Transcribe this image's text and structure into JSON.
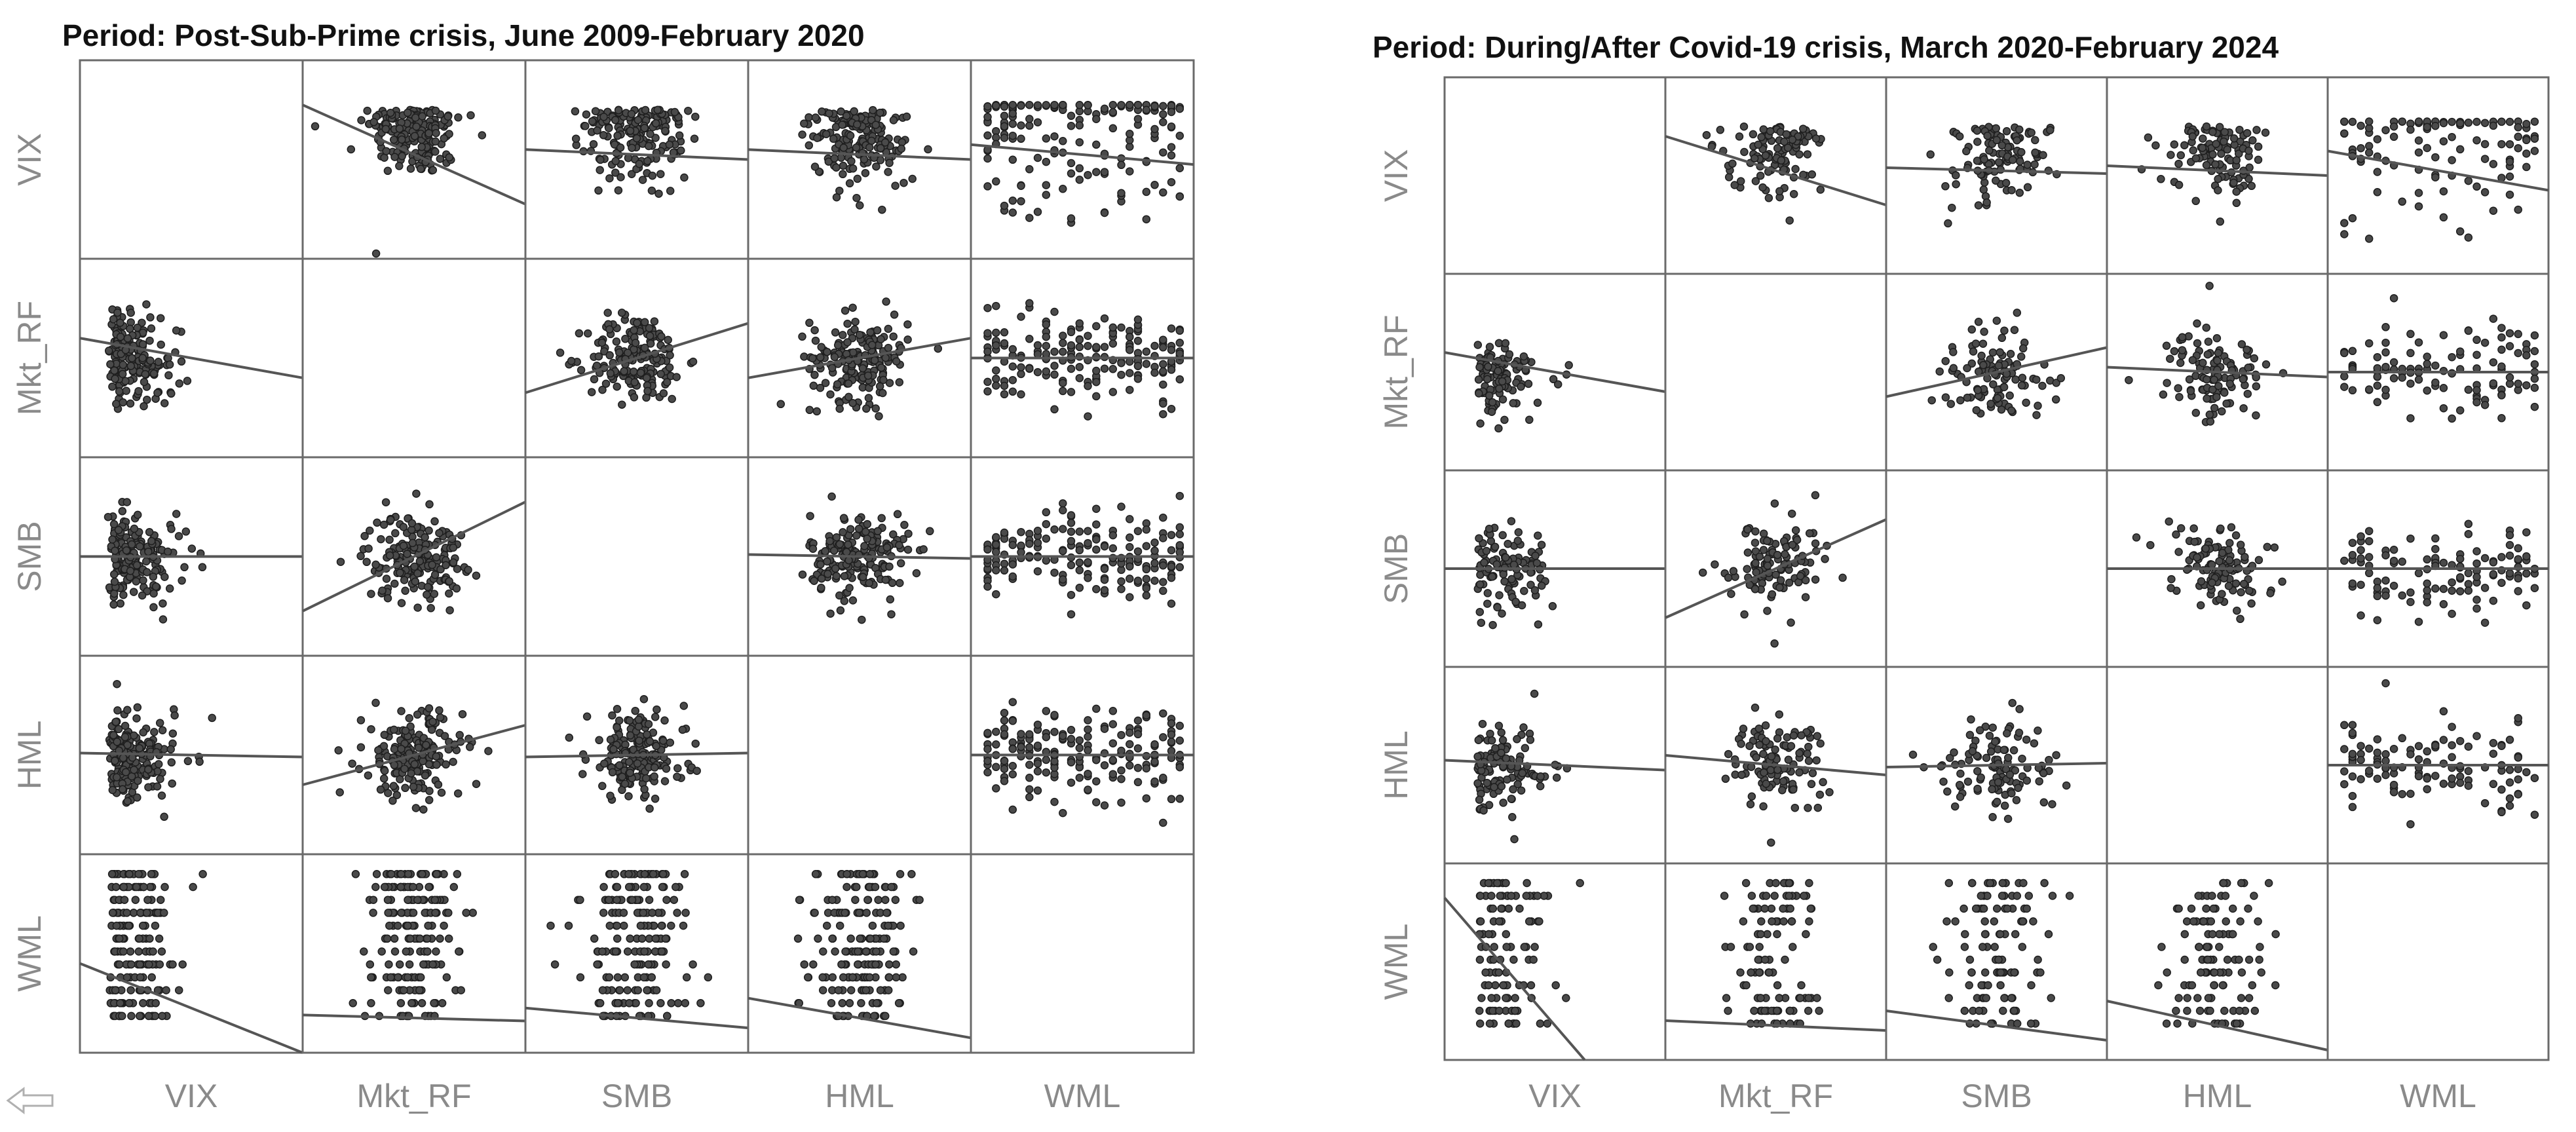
{
  "figure": {
    "variables": [
      "VIX",
      "Mkt_RF",
      "SMB",
      "HML",
      "WML"
    ]
  },
  "chart_data": [
    {
      "type": "scatter",
      "subtype": "scatterplot-matrix",
      "title": "Period: Post-Sub-Prime crisis, June 2009-February 2020",
      "variables": [
        "VIX",
        "Mkt_RF",
        "SMB",
        "HML",
        "WML"
      ],
      "row_labels": [
        "VIX",
        "Mkt_RF",
        "SMB",
        "HML",
        "WML"
      ],
      "col_labels": [
        "VIX",
        "Mkt_RF",
        "SMB",
        "HML",
        "WML"
      ],
      "diagonal": "empty",
      "grid": false,
      "regression_slopes": {
        "VIX": {
          "Mkt_RF": -0.5,
          "SMB": -0.05,
          "HML": -0.05,
          "WML": -0.1
        },
        "Mkt_RF": {
          "VIX": -0.2,
          "SMB": 0.35,
          "HML": 0.2,
          "WML": 0.0
        },
        "SMB": {
          "VIX": 0.0,
          "Mkt_RF": 0.55,
          "HML": -0.02,
          "WML": 0.0
        },
        "HML": {
          "VIX": -0.02,
          "Mkt_RF": 0.3,
          "SMB": 0.02,
          "WML": 0.0
        },
        "WML": {
          "VIX": -0.55,
          "Mkt_RF": -0.03,
          "SMB": -0.1,
          "HML": -0.2
        }
      }
    },
    {
      "type": "scatter",
      "subtype": "scatterplot-matrix",
      "title": "Period: During/After Covid-19 crisis, March 2020-February 2024",
      "variables": [
        "VIX",
        "Mkt_RF",
        "SMB",
        "HML",
        "WML"
      ],
      "row_labels": [
        "VIX",
        "Mkt_RF",
        "SMB",
        "HML",
        "WML"
      ],
      "col_labels": [
        "VIX",
        "Mkt_RF",
        "SMB",
        "HML",
        "WML"
      ],
      "diagonal": "empty",
      "grid": false,
      "regression_slopes": {
        "VIX": {
          "Mkt_RF": -0.35,
          "SMB": -0.03,
          "HML": -0.05,
          "WML": -0.2
        },
        "Mkt_RF": {
          "VIX": -0.2,
          "SMB": 0.25,
          "HML": -0.05,
          "WML": 0.0
        },
        "SMB": {
          "VIX": 0.0,
          "Mkt_RF": 0.5,
          "HML": 0.0,
          "WML": 0.0
        },
        "HML": {
          "VIX": -0.05,
          "Mkt_RF": -0.1,
          "SMB": 0.02,
          "WML": 0.0
        },
        "WML": {
          "VIX": -1.3,
          "Mkt_RF": -0.05,
          "SMB": -0.15,
          "HML": -0.25
        }
      }
    }
  ]
}
